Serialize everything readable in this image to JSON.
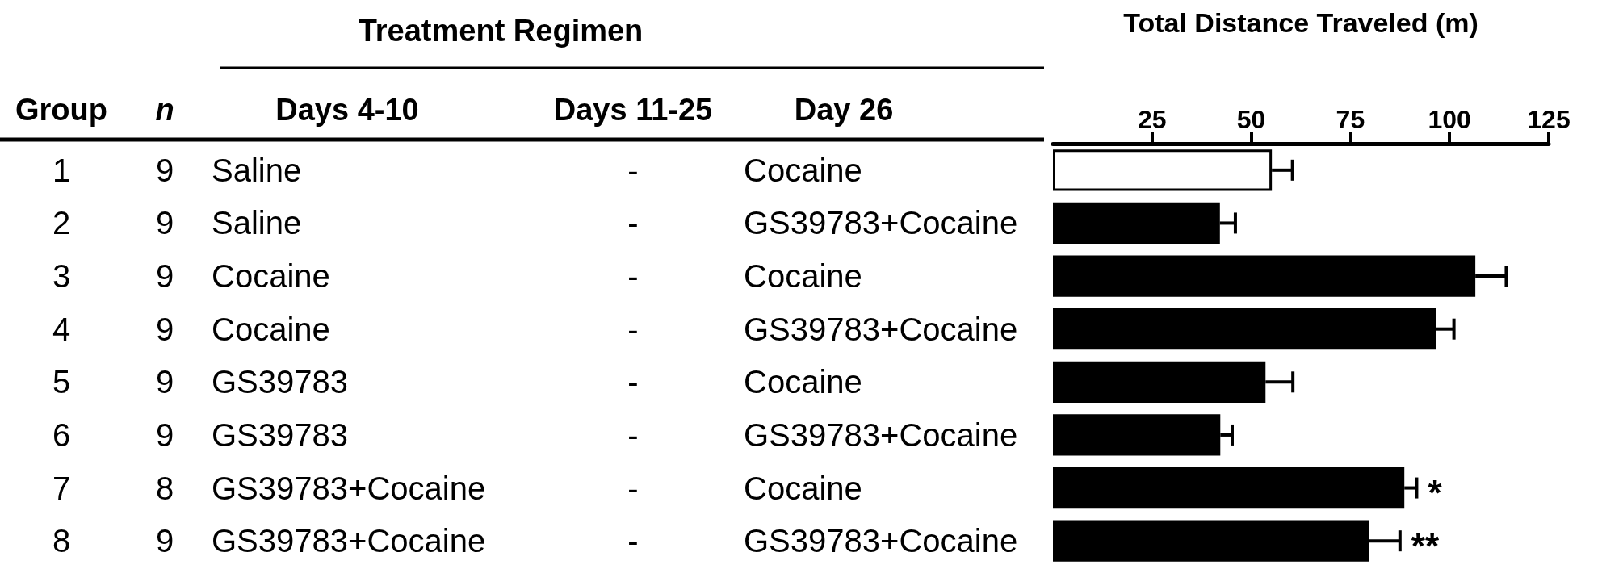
{
  "chart_data": {
    "type": "bar",
    "orientation": "horizontal",
    "xlabel": "Total Distance Traveled (m)",
    "categories": [
      null,
      null,
      null,
      null,
      null,
      null,
      null,
      null
    ],
    "values": [
      55.2,
      42.1,
      106.5,
      96.7,
      53.6,
      42.2,
      88.6,
      79.7
    ],
    "colors": [
      "#ffffff",
      "#000000",
      "#000000",
      "#000000",
      "#000000",
      "#000000",
      "#000000",
      "#000000"
    ],
    "errors": [
      [
        55.2,
        60.4
      ],
      [
        42.1,
        46
      ],
      [
        106.5,
        114.3
      ],
      [
        96.7,
        101.1
      ],
      [
        53.6,
        60.5
      ],
      [
        42.2,
        45.2
      ],
      [
        88.6,
        91.7
      ],
      [
        79.7,
        87.5
      ]
    ],
    "xlim": [
      0,
      125
    ],
    "xticks": [
      25,
      50,
      75,
      100,
      125
    ],
    "grid": false,
    "annotations": [
      "Treatment Regimen",
      "Group",
      "n",
      "Days 4-10",
      "Days 11-25",
      "Day 26",
      "1",
      "9",
      "Saline",
      "-",
      "Cocaine",
      "2",
      "9",
      "Saline",
      "-",
      "GS39783+Cocaine",
      "3",
      "9",
      "Cocaine",
      "-",
      "Cocaine",
      "4",
      "9",
      "Cocaine",
      "-",
      "GS39783+Cocaine",
      "5",
      "9",
      "GS39783",
      "-",
      "Cocaine",
      "6",
      "9",
      "GS39783",
      "-",
      "GS39783+Cocaine",
      "7",
      "8",
      "GS39783+Cocaine",
      "-",
      "Cocaine",
      "8",
      "9",
      "GS39783+Cocaine",
      "-",
      "GS39783+Cocaine",
      "*",
      "**"
    ]
  }
}
